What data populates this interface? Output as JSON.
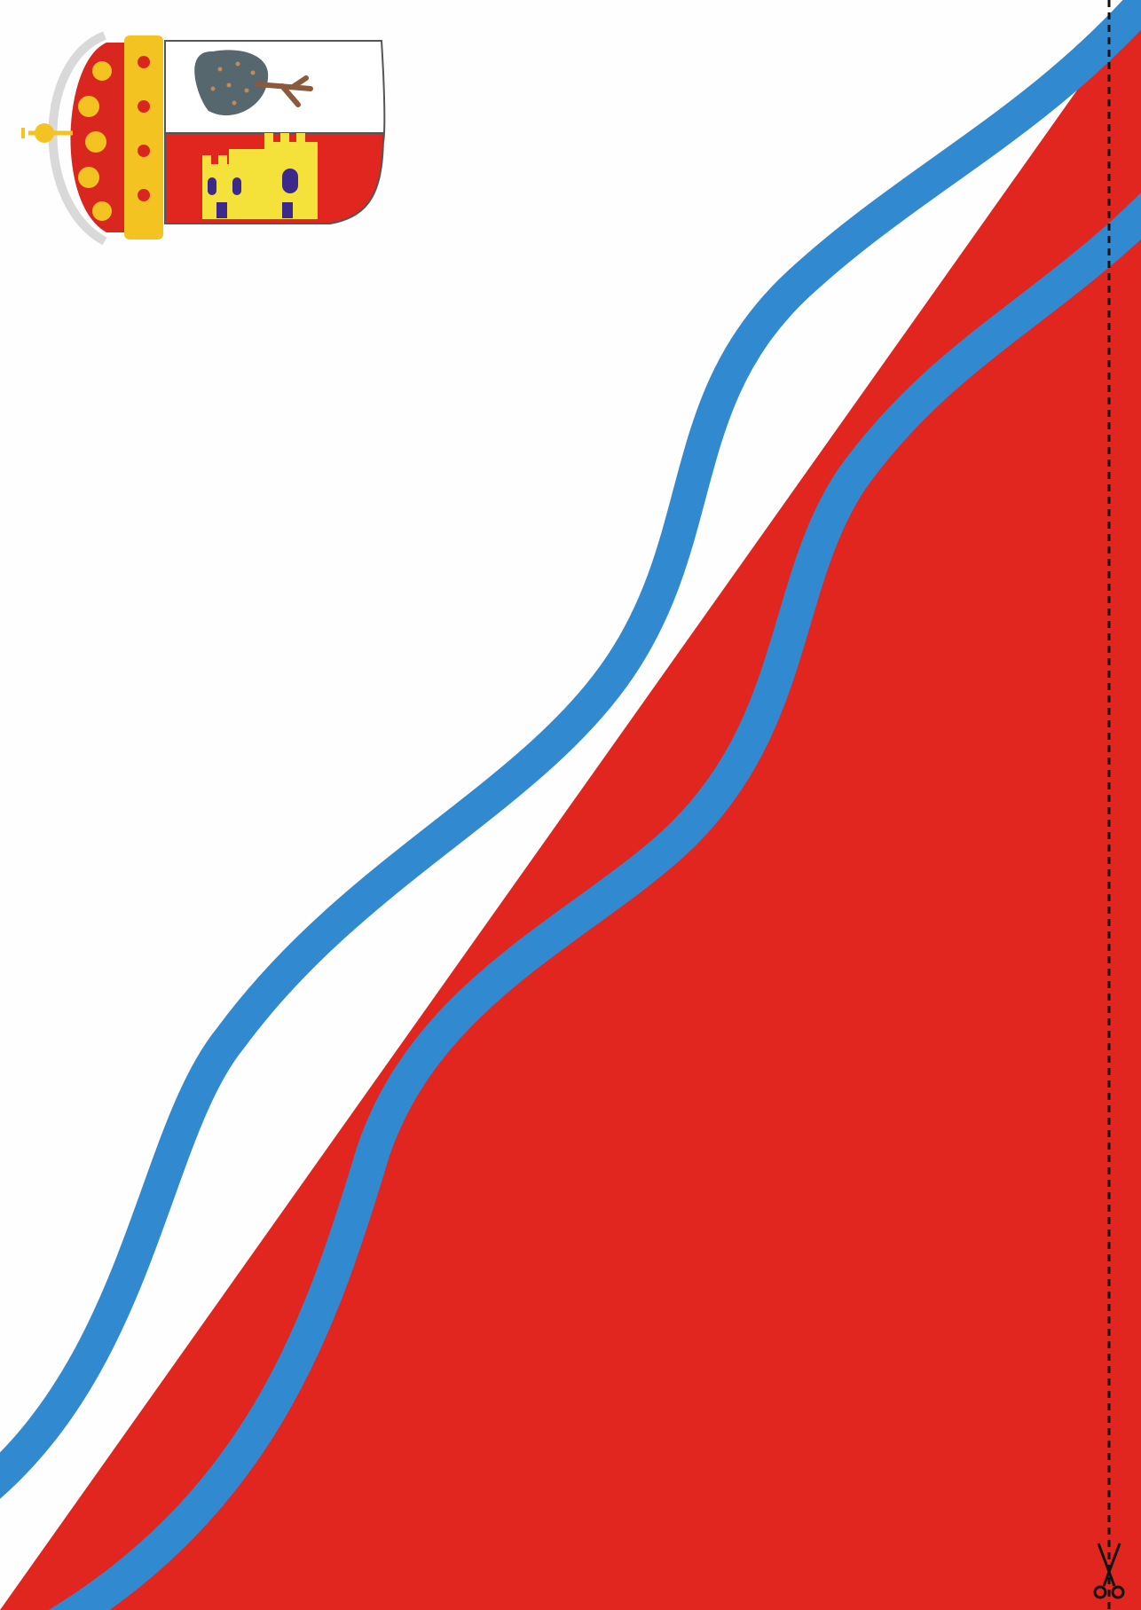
{
  "page": {
    "background_color": "#fefefe"
  },
  "colors": {
    "flag_red": "#e1251f",
    "river_blue": "#318ad0",
    "shield_white": "#ffffff",
    "tree_crown": "#56676d",
    "tree_trunk": "#8b5a3c",
    "tree_dots": "#c08a5a",
    "castle_gold": "#f4e23a",
    "castle_window": "#3c2a8a",
    "crown_gold": "#f3c321",
    "crown_red": "#d9261f",
    "pearl": "#d9d9d9",
    "cut_line": "#111111"
  },
  "coat_of_arms": {
    "upper_charge": "tree-icon",
    "lower_charge": "castle-icon",
    "crown": "royal-crown-icon"
  },
  "cut_guide": {
    "icon": "scissors-icon",
    "line_style": "dashed"
  }
}
